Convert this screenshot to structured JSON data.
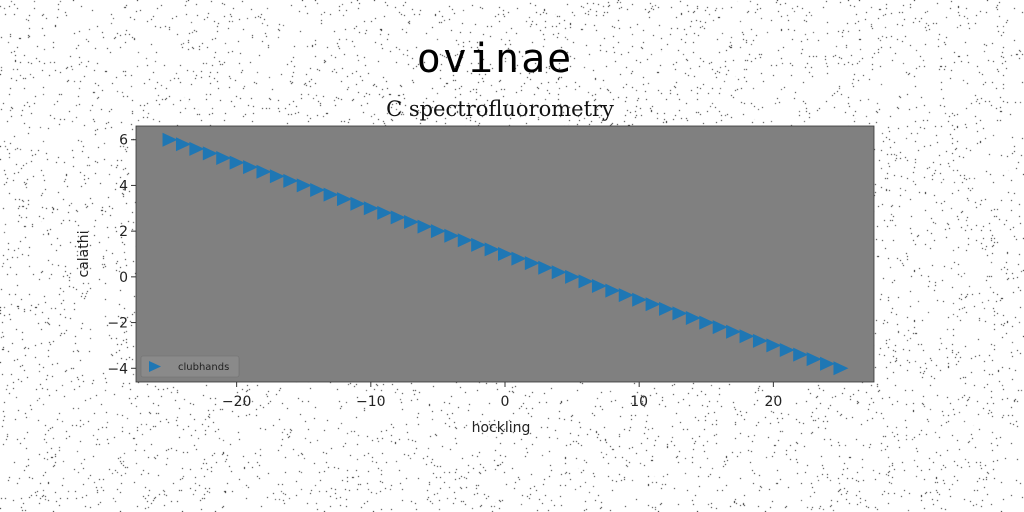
{
  "figure": {
    "suptitle": "ovinae"
  },
  "colors": {
    "page_background": "#ffffff",
    "plot_background": "#808080",
    "series": "#1f77b4",
    "legend_background": "#8a8a8a"
  },
  "chart_data": {
    "type": "scatter",
    "title": "C spectrofluorometry",
    "xlabel": "hockling",
    "ylabel": "calathi",
    "xlim": [
      -27.5,
      27.5
    ],
    "ylim": [
      -4.6,
      6.6
    ],
    "xticks": [
      -20,
      -10,
      0,
      10,
      20
    ],
    "xtick_labels": [
      "−20",
      "−10",
      "0",
      "10",
      "20"
    ],
    "yticks": [
      -4,
      -2,
      0,
      2,
      4,
      6
    ],
    "ytick_labels": [
      "−4",
      "−2",
      "0",
      "2",
      "4",
      "6"
    ],
    "grid": false,
    "legend": {
      "placement": "lower-left",
      "entries": [
        "clubhands"
      ]
    },
    "series": [
      {
        "name": "clubhands",
        "marker": "triangle-right",
        "x": [
          -25.0,
          -24.0,
          -23.0,
          -22.0,
          -21.0,
          -20.0,
          -19.0,
          -18.0,
          -17.0,
          -16.0,
          -15.0,
          -14.0,
          -13.0,
          -12.0,
          -11.0,
          -10.0,
          -9.0,
          -8.0,
          -7.0,
          -6.0,
          -5.0,
          -4.0,
          -3.0,
          -2.0,
          -1.0,
          0.0,
          1.0,
          2.0,
          3.0,
          4.0,
          5.0,
          6.0,
          7.0,
          8.0,
          9.0,
          10.0,
          11.0,
          12.0,
          13.0,
          14.0,
          15.0,
          16.0,
          17.0,
          18.0,
          19.0,
          20.0,
          21.0,
          22.0,
          23.0,
          24.0,
          25.0
        ],
        "y": [
          6.0,
          5.8,
          5.6,
          5.4,
          5.2,
          5.0,
          4.8,
          4.6,
          4.4,
          4.2,
          4.0,
          3.8,
          3.6,
          3.4,
          3.2,
          3.0,
          2.8,
          2.6,
          2.4,
          2.2,
          2.0,
          1.8,
          1.6,
          1.4,
          1.2,
          1.0,
          0.8,
          0.6,
          0.4,
          0.2,
          0.0,
          -0.2,
          -0.4,
          -0.6,
          -0.8,
          -1.0,
          -1.2,
          -1.4,
          -1.6,
          -1.8,
          -2.0,
          -2.2,
          -2.4,
          -2.6,
          -2.8,
          -3.0,
          -3.2,
          -3.4,
          -3.6,
          -3.8,
          -4.0
        ]
      }
    ]
  }
}
